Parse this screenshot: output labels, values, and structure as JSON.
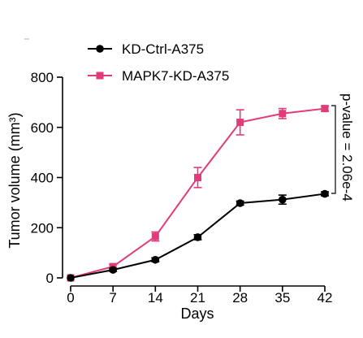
{
  "chart_data": {
    "type": "line",
    "xlabel": "Days",
    "ylabel": "Tumor volume (mm³)",
    "x": [
      0,
      7,
      14,
      21,
      28,
      35,
      42
    ],
    "xlim": [
      0,
      42
    ],
    "ylim": [
      0,
      800
    ],
    "x_ticks": [
      0,
      7,
      14,
      21,
      28,
      35,
      42
    ],
    "y_ticks": [
      0,
      200,
      400,
      600,
      800
    ],
    "grid": false,
    "legend_position": "top-left",
    "series": [
      {
        "name": "KD-Ctrl-A375",
        "marker": "circle",
        "color": "#000000",
        "values": [
          0,
          32,
          72,
          162,
          298,
          312,
          335
        ],
        "errors": [
          0,
          6,
          8,
          10,
          8,
          18,
          8
        ]
      },
      {
        "name": "MAPK7-KD-A375",
        "marker": "square",
        "color": "#e23b7b",
        "values": [
          0,
          45,
          165,
          400,
          620,
          655,
          675
        ],
        "errors": [
          0,
          8,
          18,
          40,
          50,
          20,
          10
        ]
      }
    ],
    "annotation": "p-value = 2.06e-4"
  }
}
